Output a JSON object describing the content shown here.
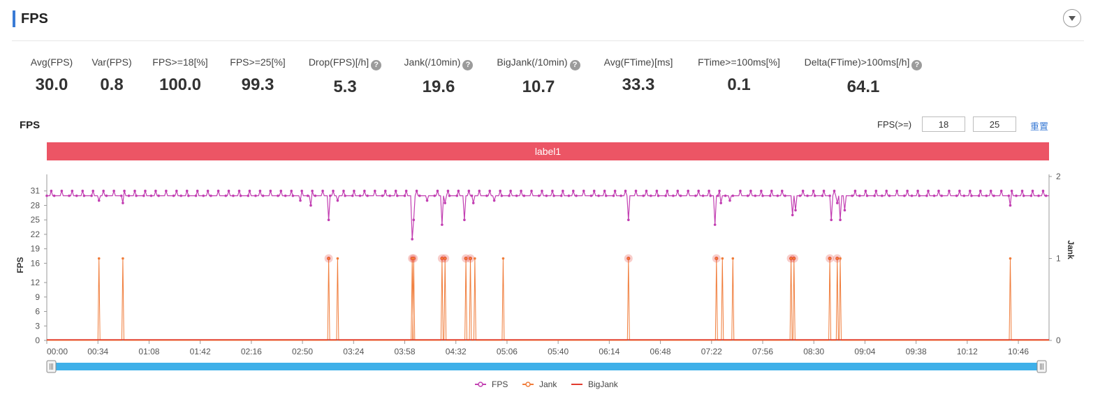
{
  "header": {
    "title": "FPS"
  },
  "metrics": [
    {
      "label": "Avg(FPS)",
      "value": "30.0",
      "help": false
    },
    {
      "label": "Var(FPS)",
      "value": "0.8",
      "help": false
    },
    {
      "label": "FPS>=18[%]",
      "value": "100.0",
      "help": false
    },
    {
      "label": "FPS>=25[%]",
      "value": "99.3",
      "help": false
    },
    {
      "label": "Drop(FPS)[/h]",
      "value": "5.3",
      "help": true
    },
    {
      "label": "Jank(/10min)",
      "value": "19.6",
      "help": true
    },
    {
      "label": "BigJank(/10min)",
      "value": "10.7",
      "help": true
    },
    {
      "label": "Avg(FTime)[ms]",
      "value": "33.3",
      "help": false
    },
    {
      "label": "FTime>=100ms[%]",
      "value": "0.1",
      "help": false
    },
    {
      "label": "Delta(FTime)>100ms[/h]",
      "value": "64.1",
      "help": true
    }
  ],
  "chart_controls": {
    "title": "FPS",
    "threshold_label": "FPS(>=)",
    "threshold_low": "18",
    "threshold_high": "25",
    "reset_label": "重置"
  },
  "colors": {
    "fps": "#c23fb2",
    "jank": "#f07c3a",
    "bigjank": "#e23b2e",
    "label_band": "#ec5565",
    "slider_fill": "#3fb0e9",
    "accent": "#3a7bd5"
  },
  "chart_data": {
    "type": "line",
    "x_ticks": [
      "00:00",
      "00:34",
      "01:08",
      "01:42",
      "02:16",
      "02:50",
      "03:24",
      "03:58",
      "04:32",
      "05:06",
      "05:40",
      "06:14",
      "06:48",
      "07:22",
      "07:56",
      "08:30",
      "09:04",
      "09:38",
      "10:12",
      "10:46"
    ],
    "x_range_seconds": [
      0,
      672
    ],
    "y_left": {
      "label": "FPS",
      "ticks": [
        0,
        3,
        6,
        9,
        12,
        16,
        19,
        22,
        25,
        28,
        31
      ],
      "max": 34
    },
    "y_right": {
      "label": "Jank",
      "ticks": [
        0,
        1,
        2
      ],
      "max": 2
    },
    "label_band": "label1",
    "series": [
      {
        "name": "FPS",
        "baseline": 30,
        "dips": [
          {
            "t": 35,
            "v": 29
          },
          {
            "t": 51,
            "v": 28.5
          },
          {
            "t": 170,
            "v": 29
          },
          {
            "t": 177,
            "v": 28
          },
          {
            "t": 189,
            "v": 25
          },
          {
            "t": 195,
            "v": 29
          },
          {
            "t": 245,
            "v": 21
          },
          {
            "t": 246,
            "v": 25
          },
          {
            "t": 255,
            "v": 29
          },
          {
            "t": 265,
            "v": 24
          },
          {
            "t": 267,
            "v": 28.5
          },
          {
            "t": 280,
            "v": 25
          },
          {
            "t": 286,
            "v": 28.5
          },
          {
            "t": 300,
            "v": 29
          },
          {
            "t": 390,
            "v": 25
          },
          {
            "t": 448,
            "v": 24
          },
          {
            "t": 452,
            "v": 28.5
          },
          {
            "t": 458,
            "v": 29
          },
          {
            "t": 500,
            "v": 26
          },
          {
            "t": 502,
            "v": 27
          },
          {
            "t": 526,
            "v": 25
          },
          {
            "t": 530,
            "v": 28.5
          },
          {
            "t": 532,
            "v": 25
          },
          {
            "t": 535,
            "v": 27
          },
          {
            "t": 646,
            "v": 28
          }
        ]
      },
      {
        "name": "Jank",
        "spikes_t": [
          35,
          51,
          189,
          195,
          245,
          246,
          265,
          267,
          281,
          284,
          287,
          306,
          390,
          449,
          453,
          460,
          499,
          501,
          525,
          530,
          532,
          646
        ]
      },
      {
        "name": "BigJank",
        "spikes_t": [
          189,
          245,
          246,
          265,
          267,
          281,
          284,
          390,
          449,
          499,
          501,
          525,
          530
        ]
      }
    ],
    "legend": [
      "FPS",
      "Jank",
      "BigJank"
    ],
    "legend_position": "bottom"
  }
}
